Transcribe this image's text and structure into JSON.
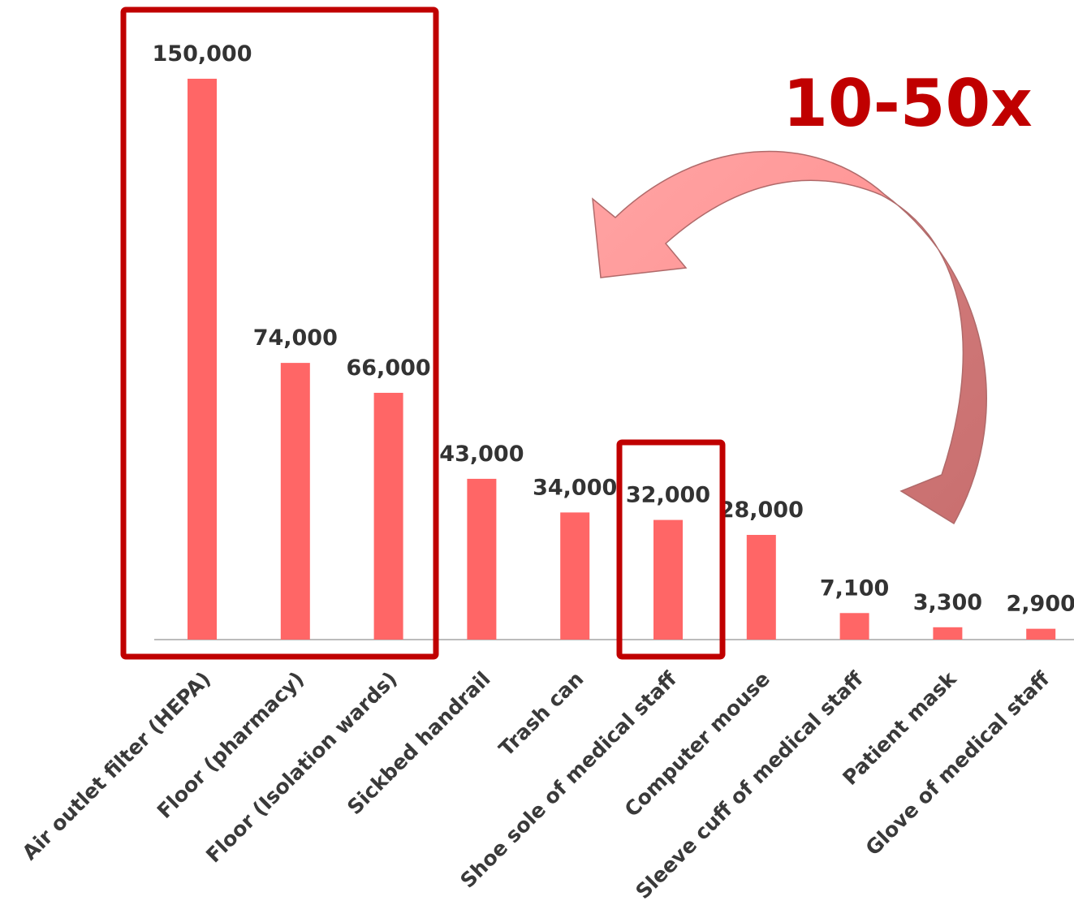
{
  "chart_data": {
    "type": "bar",
    "categories": [
      "Air outlet filter (HEPA)",
      "Floor (pharmacy)",
      "Floor (Isolation wards)",
      "Sickbed handrail",
      "Trash can",
      "Shoe sole of medical staff",
      "Computer mouse",
      "Sleeve cuff of medical staff",
      "Patient mask",
      "Glove of medical staff"
    ],
    "values": [
      150000,
      74000,
      66000,
      43000,
      34000,
      32000,
      28000,
      7100,
      3300,
      2900
    ],
    "value_labels": [
      "150,000",
      "74,000",
      "66,000",
      "43,000",
      "34,000",
      "32,000",
      "28,000",
      "7,100",
      "3,300",
      "2,900"
    ],
    "ylim": [
      0,
      150000
    ],
    "grid": false,
    "legend": "none",
    "annotation": "10-50x",
    "highlighted_groups": [
      [
        "Air outlet filter (HEPA)",
        "Floor (pharmacy)",
        "Floor (Isolation wards)"
      ],
      [
        "Shoe sole of medical staff"
      ]
    ]
  },
  "colors": {
    "bar": "#ff6666",
    "box": "#c00000",
    "annotation": "#c00000",
    "arrow_light": "#ff9a9a",
    "arrow_dark": "#cc7070",
    "axis": "#a6a6a6"
  }
}
